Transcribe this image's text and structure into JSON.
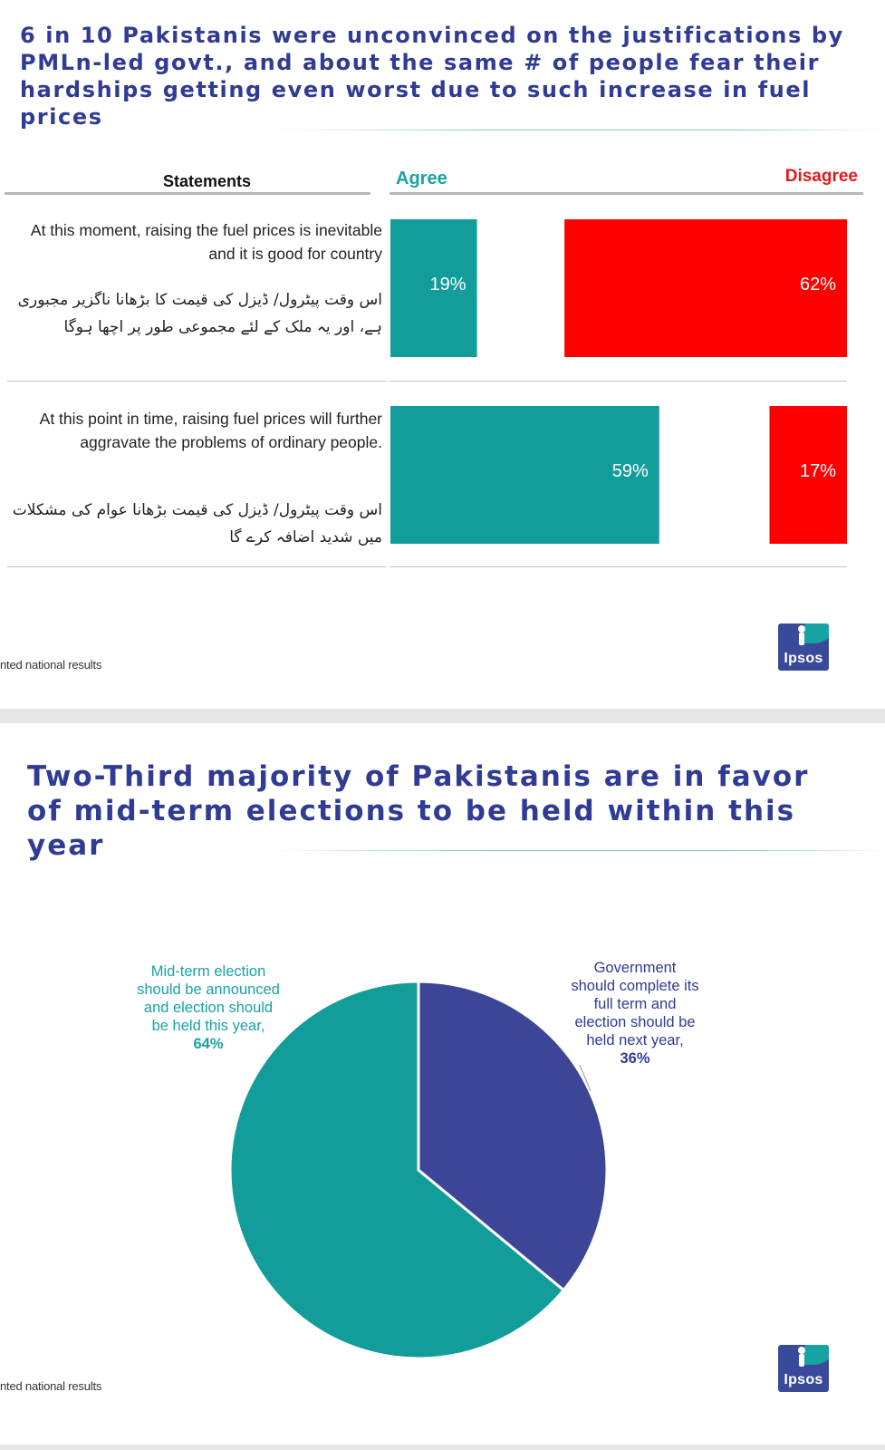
{
  "slide1": {
    "title": "6 in 10 Pakistanis were unconvinced on the justifications by PMLn-led govt., and about the same # of people fear their hardships getting even worst due to such increase in fuel prices",
    "header_statements": "Statements",
    "header_agree": "Agree",
    "header_disagree": "Disagree",
    "footnote": "nted national results",
    "logo": "Ipsos"
  },
  "slide2": {
    "title": "Two-Third majority of Pakistanis are in favor of mid-term elections to be held within this year",
    "footnote": "nted national results",
    "logo": "Ipsos"
  },
  "chart_data": [
    {
      "type": "bar",
      "orientation": "horizontal",
      "categories": [
        {
          "en": "At this moment, raising the fuel prices is inevitable and it is good for country",
          "ur": "اس وقت پیٹرول/ ڈیزل کی قیمت کا بڑھانا ناگزیر مجبوری ہے، اور یہ ملک کے لئے مجموعی طور پر اچھا ہوگا"
        },
        {
          "en": "At this point in time, raising fuel prices will further aggravate the problems of ordinary people.",
          "ur": "اس وقت پیٹرول/ ڈیزل کی قیمت بڑھانا عوام کی مشکلات میں شدید اضافہ کرے گا"
        }
      ],
      "series": [
        {
          "name": "Agree",
          "color": "#129c9a",
          "values": [
            19,
            59
          ],
          "labels": [
            "19%",
            "59%"
          ]
        },
        {
          "name": "Disagree",
          "color": "#ff0000",
          "values": [
            62,
            17
          ],
          "labels": [
            "62%",
            "17%"
          ]
        }
      ],
      "unit": "%"
    },
    {
      "type": "pie",
      "slices": [
        {
          "lines": [
            "Mid-term election",
            "should be announced",
            "and election should",
            "be held this year,"
          ],
          "value": 64,
          "label": "64%",
          "color": "#129c9a"
        },
        {
          "lines": [
            "Government",
            "should complete its",
            "full term and",
            "election should be",
            "held next year,"
          ],
          "value": 36,
          "label": "36%",
          "color": "#3c4596"
        }
      ],
      "start": "12 o'clock",
      "direction": "clockwise"
    }
  ]
}
